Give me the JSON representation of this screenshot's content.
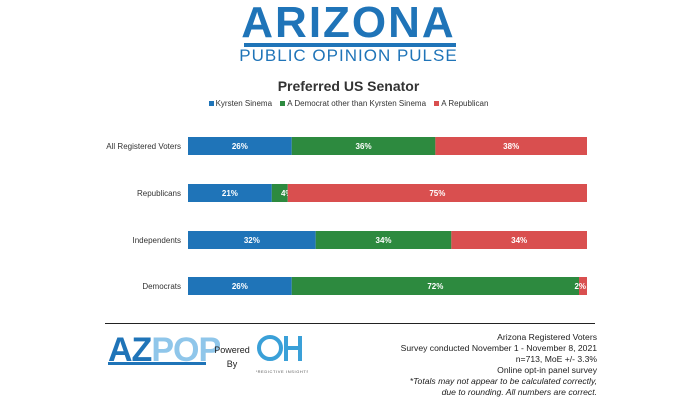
{
  "brand": {
    "title": "ARIZONA",
    "subtitle": "PUBLIC OPINION PULSE",
    "logo_text_1": "AZ",
    "logo_text_2": "POP",
    "powered_line1": "Powered",
    "powered_line2": "By",
    "partner_logo_text": "PREDICTIVE INSIGHTS"
  },
  "colors": {
    "brand_blue": "#1f74b8",
    "kyrsten": "#1f74b8",
    "democrat_other": "#2d8a3f",
    "republican": "#d94f4f"
  },
  "chart_data": {
    "type": "bar",
    "orientation": "horizontal",
    "stacked": true,
    "normalized": true,
    "title": "Preferred US Senator",
    "categories": [
      "All Registered Voters",
      "Republicans",
      "Independents",
      "Democrats"
    ],
    "series": [
      {
        "name": "Kyrsten Sinema",
        "values": [
          26,
          21,
          32,
          26
        ],
        "labels": [
          "26%",
          "21%",
          "32%",
          "26%"
        ],
        "color": "#1f74b8"
      },
      {
        "name": "A Democrat other than Kyrsten Sinema",
        "values": [
          36,
          4,
          34,
          72
        ],
        "labels": [
          "36%",
          "4%",
          "34%",
          "72%"
        ],
        "color": "#2d8a3f"
      },
      {
        "name": "A Republican",
        "values": [
          38,
          75,
          34,
          2
        ],
        "labels": [
          "38%",
          "75%",
          "34%",
          "2%"
        ],
        "color": "#d94f4f"
      }
    ],
    "legend_position": "top",
    "grid": false
  },
  "footer": {
    "lines": [
      "Arizona Registered Voters",
      "Survey conducted November 1 - November 8, 2021",
      "n=713, MoE +/- 3.3%",
      "Online opt-in panel survey"
    ],
    "notes": [
      "*Totals may not appear to be calculated correctly,",
      "due to rounding. All numbers are correct."
    ]
  }
}
